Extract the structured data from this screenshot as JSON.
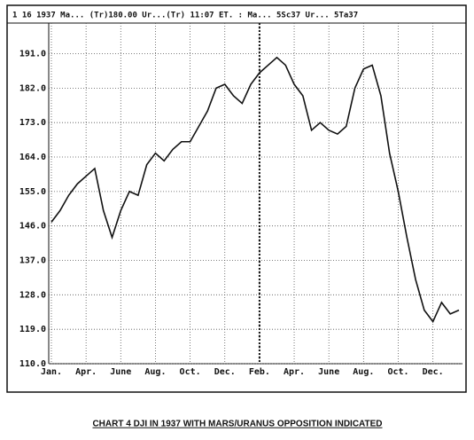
{
  "chart_data": {
    "type": "line",
    "header": "1 16 1937 Ma... (Tr)180.00 Ur...(Tr)  11:07 ET. : Ma...   5Sc37 Ur...   5Ta37",
    "caption": "CHART 4  DJI IN 1937 WITH MARS/URANUS OPPOSITION INDICATED",
    "categories": [
      "Jan.",
      null,
      null,
      null,
      "Apr.",
      null,
      null,
      null,
      "June",
      null,
      null,
      null,
      "Aug.",
      null,
      null,
      null,
      "Oct.",
      null,
      null,
      null,
      "Dec.",
      null,
      null,
      null,
      "Feb.",
      null,
      null,
      null,
      "Apr.",
      null,
      null,
      null,
      "June",
      null,
      null,
      null,
      "Aug.",
      null,
      null,
      null,
      "Oct.",
      null,
      null,
      null,
      "Dec.",
      null,
      null,
      null
    ],
    "values": [
      147,
      150,
      154,
      157,
      159,
      161,
      150,
      143,
      150,
      155,
      154,
      162,
      165,
      163,
      166,
      168,
      168,
      172,
      176,
      182,
      183,
      180,
      178,
      183,
      186,
      188,
      190,
      188,
      183,
      180,
      171,
      173,
      171,
      170,
      172,
      182,
      187,
      188,
      180,
      165,
      155,
      143,
      132,
      124,
      121,
      126,
      123,
      124
    ],
    "color": "#111111",
    "ylim": [
      110,
      199
    ],
    "yticks": [
      {
        "value": 110,
        "label": "110.0"
      },
      {
        "value": 119,
        "label": "119.0"
      },
      {
        "value": 128,
        "label": "128.0"
      },
      {
        "value": 137,
        "label": "137.0"
      },
      {
        "value": 146,
        "label": "146.0"
      },
      {
        "value": 155,
        "label": "155.0"
      },
      {
        "value": 164,
        "label": "164.0"
      },
      {
        "value": 173,
        "label": "173.0"
      },
      {
        "value": 182,
        "label": "182.0"
      },
      {
        "value": 191,
        "label": "191.0"
      }
    ],
    "grid": true
  }
}
